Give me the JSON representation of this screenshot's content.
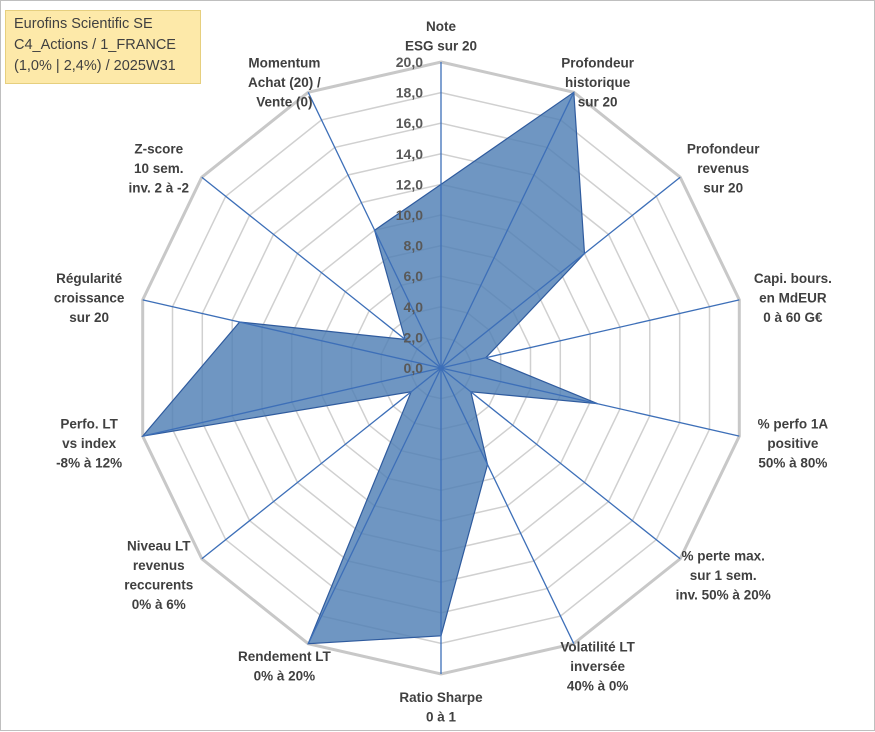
{
  "title_box": {
    "line1": "Eurofins Scientific SE",
    "line2": "C4_Actions / 1_FRANCE",
    "line3": "(1,0% | 2,4%) / 2025W31"
  },
  "chart_data": {
    "type": "radar",
    "rmin": 0,
    "rmax": 20,
    "tick_step": 2,
    "tick_labels": [
      "0,0",
      "2,0",
      "4,0",
      "6,0",
      "8,0",
      "10,0",
      "12,0",
      "14,0",
      "16,0",
      "18,0",
      "20,0"
    ],
    "grid": true,
    "fill_color": "#4f7fb5",
    "line_color": "#2f5b9e",
    "grid_color": "#d0d0d0",
    "axes": [
      {
        "label": [
          "Note",
          "ESG sur 20"
        ],
        "value": 12.0
      },
      {
        "label": [
          "Profondeur",
          "historique",
          "sur 20"
        ],
        "value": 20.0
      },
      {
        "label": [
          "Profondeur",
          "revenus",
          "sur 20"
        ],
        "value": 12.0
      },
      {
        "label": [
          "Capi. bours.",
          "en MdEUR",
          "0 à 60 G€"
        ],
        "value": 3.0
      },
      {
        "label": [
          "% perfo 1A",
          "positive",
          "50% à 80%"
        ],
        "value": 10.5
      },
      {
        "label": [
          "% perte max.",
          "sur 1 sem.",
          "inv. 50% à 20%"
        ],
        "value": 2.5
      },
      {
        "label": [
          "Volatilité LT",
          "inversée",
          "40% à 0%"
        ],
        "value": 7.0
      },
      {
        "label": [
          "Ratio Sharpe",
          "0 à 1"
        ],
        "value": 17.5
      },
      {
        "label": [
          "Rendement LT",
          "0% à 20%"
        ],
        "value": 20.0
      },
      {
        "label": [
          "Niveau LT",
          "revenus",
          "reccurents",
          "0% à 6%"
        ],
        "value": 2.5
      },
      {
        "label": [
          "Perfo. LT",
          "vs index",
          "-8% à 12%"
        ],
        "value": 20.0
      },
      {
        "label": [
          "Régularité",
          "croissance",
          "sur 20"
        ],
        "value": 13.5
      },
      {
        "label": [
          "Z-score",
          "10 sem.",
          "inv. 2 à -2"
        ],
        "value": 3.0
      },
      {
        "label": [
          "Momentum",
          "Achat (20) /",
          "Vente (0)"
        ],
        "value": 10.0
      }
    ]
  }
}
